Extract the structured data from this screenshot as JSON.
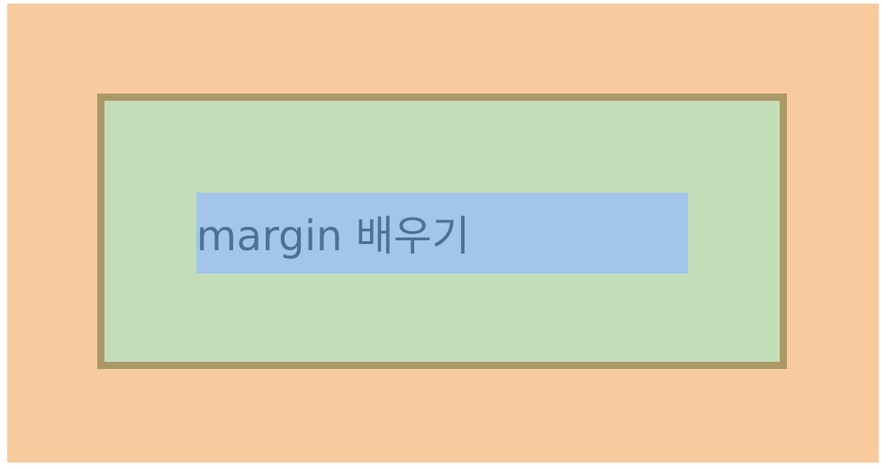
{
  "box_model": {
    "content_text": "margin 배우기",
    "colors": {
      "page_background": "#ffffff",
      "margin": "#f8cb9f",
      "border": "#ab9867",
      "padding": "#c4ddb9",
      "content": "#a3c5e7",
      "text": "#4d7194"
    }
  }
}
